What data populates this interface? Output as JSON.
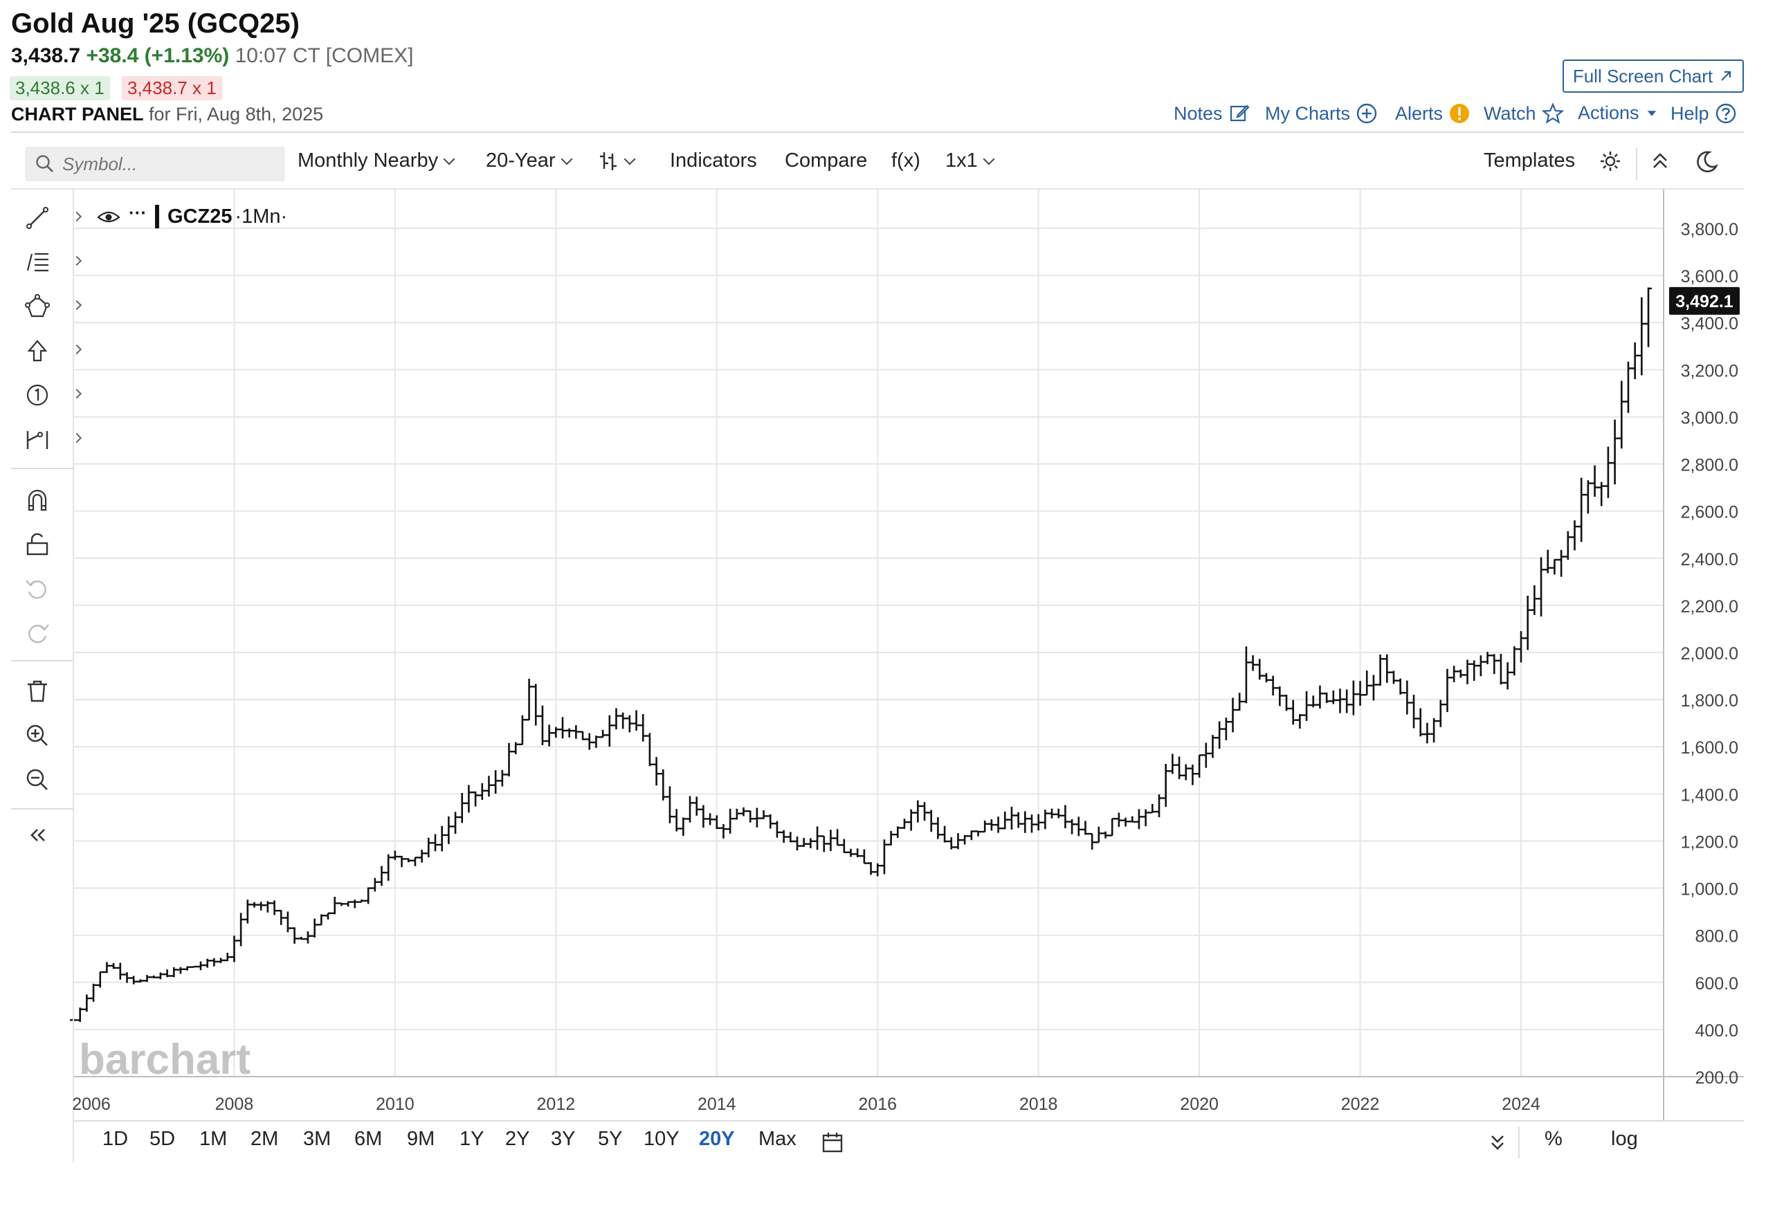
{
  "header": {
    "title": "Gold Aug '25 (GCQ25)",
    "last": "3,438.7",
    "change": "+38.4 (+1.13%)",
    "time": "10:07 CT [COMEX]",
    "bid": "3,438.6 x 1",
    "ask": "3,438.7 x 1",
    "panel_label": "CHART PANEL",
    "panel_date": "for Fri, Aug 8th, 2025",
    "full_screen": "Full Screen Chart",
    "links": {
      "notes": "Notes",
      "my_charts": "My Charts",
      "alerts": "Alerts",
      "watch": "Watch",
      "actions": "Actions",
      "help": "Help"
    }
  },
  "toolbar": {
    "search_placeholder": "Symbol...",
    "aggregation": "Monthly Nearby",
    "period": "20-Year",
    "indicators": "Indicators",
    "compare": "Compare",
    "fx": "f(x)",
    "layout": "1x1",
    "templates": "Templates"
  },
  "legend": {
    "symbol": "GCZ25",
    "interval": "·1Mn·"
  },
  "watermark": "barchart",
  "chart_data": {
    "type": "ohlc",
    "symbol": "GCZ25",
    "interval": "monthly",
    "x_range": [
      2006,
      2025.6
    ],
    "x_ticks": [
      "2006",
      "2008",
      "2010",
      "2012",
      "2014",
      "2016",
      "2018",
      "2020",
      "2022",
      "2024"
    ],
    "ylim": [
      200,
      3900
    ],
    "y_ticks": [
      "200.0",
      "400.0",
      "600.0",
      "800.0",
      "1,000.0",
      "1,200.0",
      "1,400.0",
      "1,600.0",
      "1,800.0",
      "2,000.0",
      "2,200.0",
      "2,400.0",
      "2,600.0",
      "2,800.0",
      "3,000.0",
      "3,200.0",
      "3,400.0",
      "3,600.0",
      "3,800.0"
    ],
    "last_price_label": "3,492.1",
    "last_price": 3492.1,
    "grid": true,
    "anchors": [
      [
        2006.0,
        440
      ],
      [
        2006.4,
        680
      ],
      [
        2006.8,
        600
      ],
      [
        2007.4,
        660
      ],
      [
        2007.9,
        700
      ],
      [
        2008.2,
        950
      ],
      [
        2008.5,
        920
      ],
      [
        2008.8,
        760
      ],
      [
        2009.2,
        920
      ],
      [
        2009.6,
        960
      ],
      [
        2009.9,
        1120
      ],
      [
        2010.3,
        1140
      ],
      [
        2010.6,
        1230
      ],
      [
        2010.9,
        1380
      ],
      [
        2011.2,
        1430
      ],
      [
        2011.5,
        1600
      ],
      [
        2011.67,
        1830
      ],
      [
        2011.85,
        1620
      ],
      [
        2012.2,
        1700
      ],
      [
        2012.45,
        1590
      ],
      [
        2012.75,
        1760
      ],
      [
        2013.05,
        1650
      ],
      [
        2013.3,
        1430
      ],
      [
        2013.5,
        1240
      ],
      [
        2013.7,
        1360
      ],
      [
        2014.0,
        1250
      ],
      [
        2014.3,
        1310
      ],
      [
        2014.6,
        1300
      ],
      [
        2014.9,
        1190
      ],
      [
        2015.2,
        1220
      ],
      [
        2015.5,
        1180
      ],
      [
        2015.95,
        1070
      ],
      [
        2016.15,
        1240
      ],
      [
        2016.5,
        1350
      ],
      [
        2016.9,
        1170
      ],
      [
        2017.3,
        1260
      ],
      [
        2017.7,
        1290
      ],
      [
        2017.9,
        1270
      ],
      [
        2018.2,
        1340
      ],
      [
        2018.5,
        1260
      ],
      [
        2018.7,
        1200
      ],
      [
        2019.0,
        1300
      ],
      [
        2019.4,
        1300
      ],
      [
        2019.6,
        1500
      ],
      [
        2019.9,
        1490
      ],
      [
        2020.2,
        1640
      ],
      [
        2020.5,
        1780
      ],
      [
        2020.6,
        1970
      ],
      [
        2020.9,
        1880
      ],
      [
        2021.2,
        1720
      ],
      [
        2021.5,
        1800
      ],
      [
        2021.8,
        1780
      ],
      [
        2022.1,
        1850
      ],
      [
        2022.25,
        1940
      ],
      [
        2022.5,
        1810
      ],
      [
        2022.8,
        1650
      ],
      [
        2023.1,
        1880
      ],
      [
        2023.4,
        1980
      ],
      [
        2023.6,
        1960
      ],
      [
        2023.8,
        1880
      ],
      [
        2024.0,
        2060
      ],
      [
        2024.2,
        2300
      ],
      [
        2024.5,
        2400
      ],
      [
        2024.8,
        2700
      ],
      [
        2025.0,
        2700
      ],
      [
        2025.3,
        3150
      ],
      [
        2025.45,
        3340
      ],
      [
        2025.58,
        3492
      ]
    ]
  },
  "range_buttons": [
    "1D",
    "5D",
    "1M",
    "2M",
    "3M",
    "6M",
    "9M",
    "1Y",
    "2Y",
    "3Y",
    "5Y",
    "10Y",
    "20Y",
    "Max"
  ],
  "active_range": "20Y",
  "scale_buttons": {
    "percent": "%",
    "log": "log"
  },
  "colors": {
    "link": "#2a5f9e",
    "up": "#2e7d32",
    "down": "#c62828",
    "active": "#1f5fb3"
  }
}
